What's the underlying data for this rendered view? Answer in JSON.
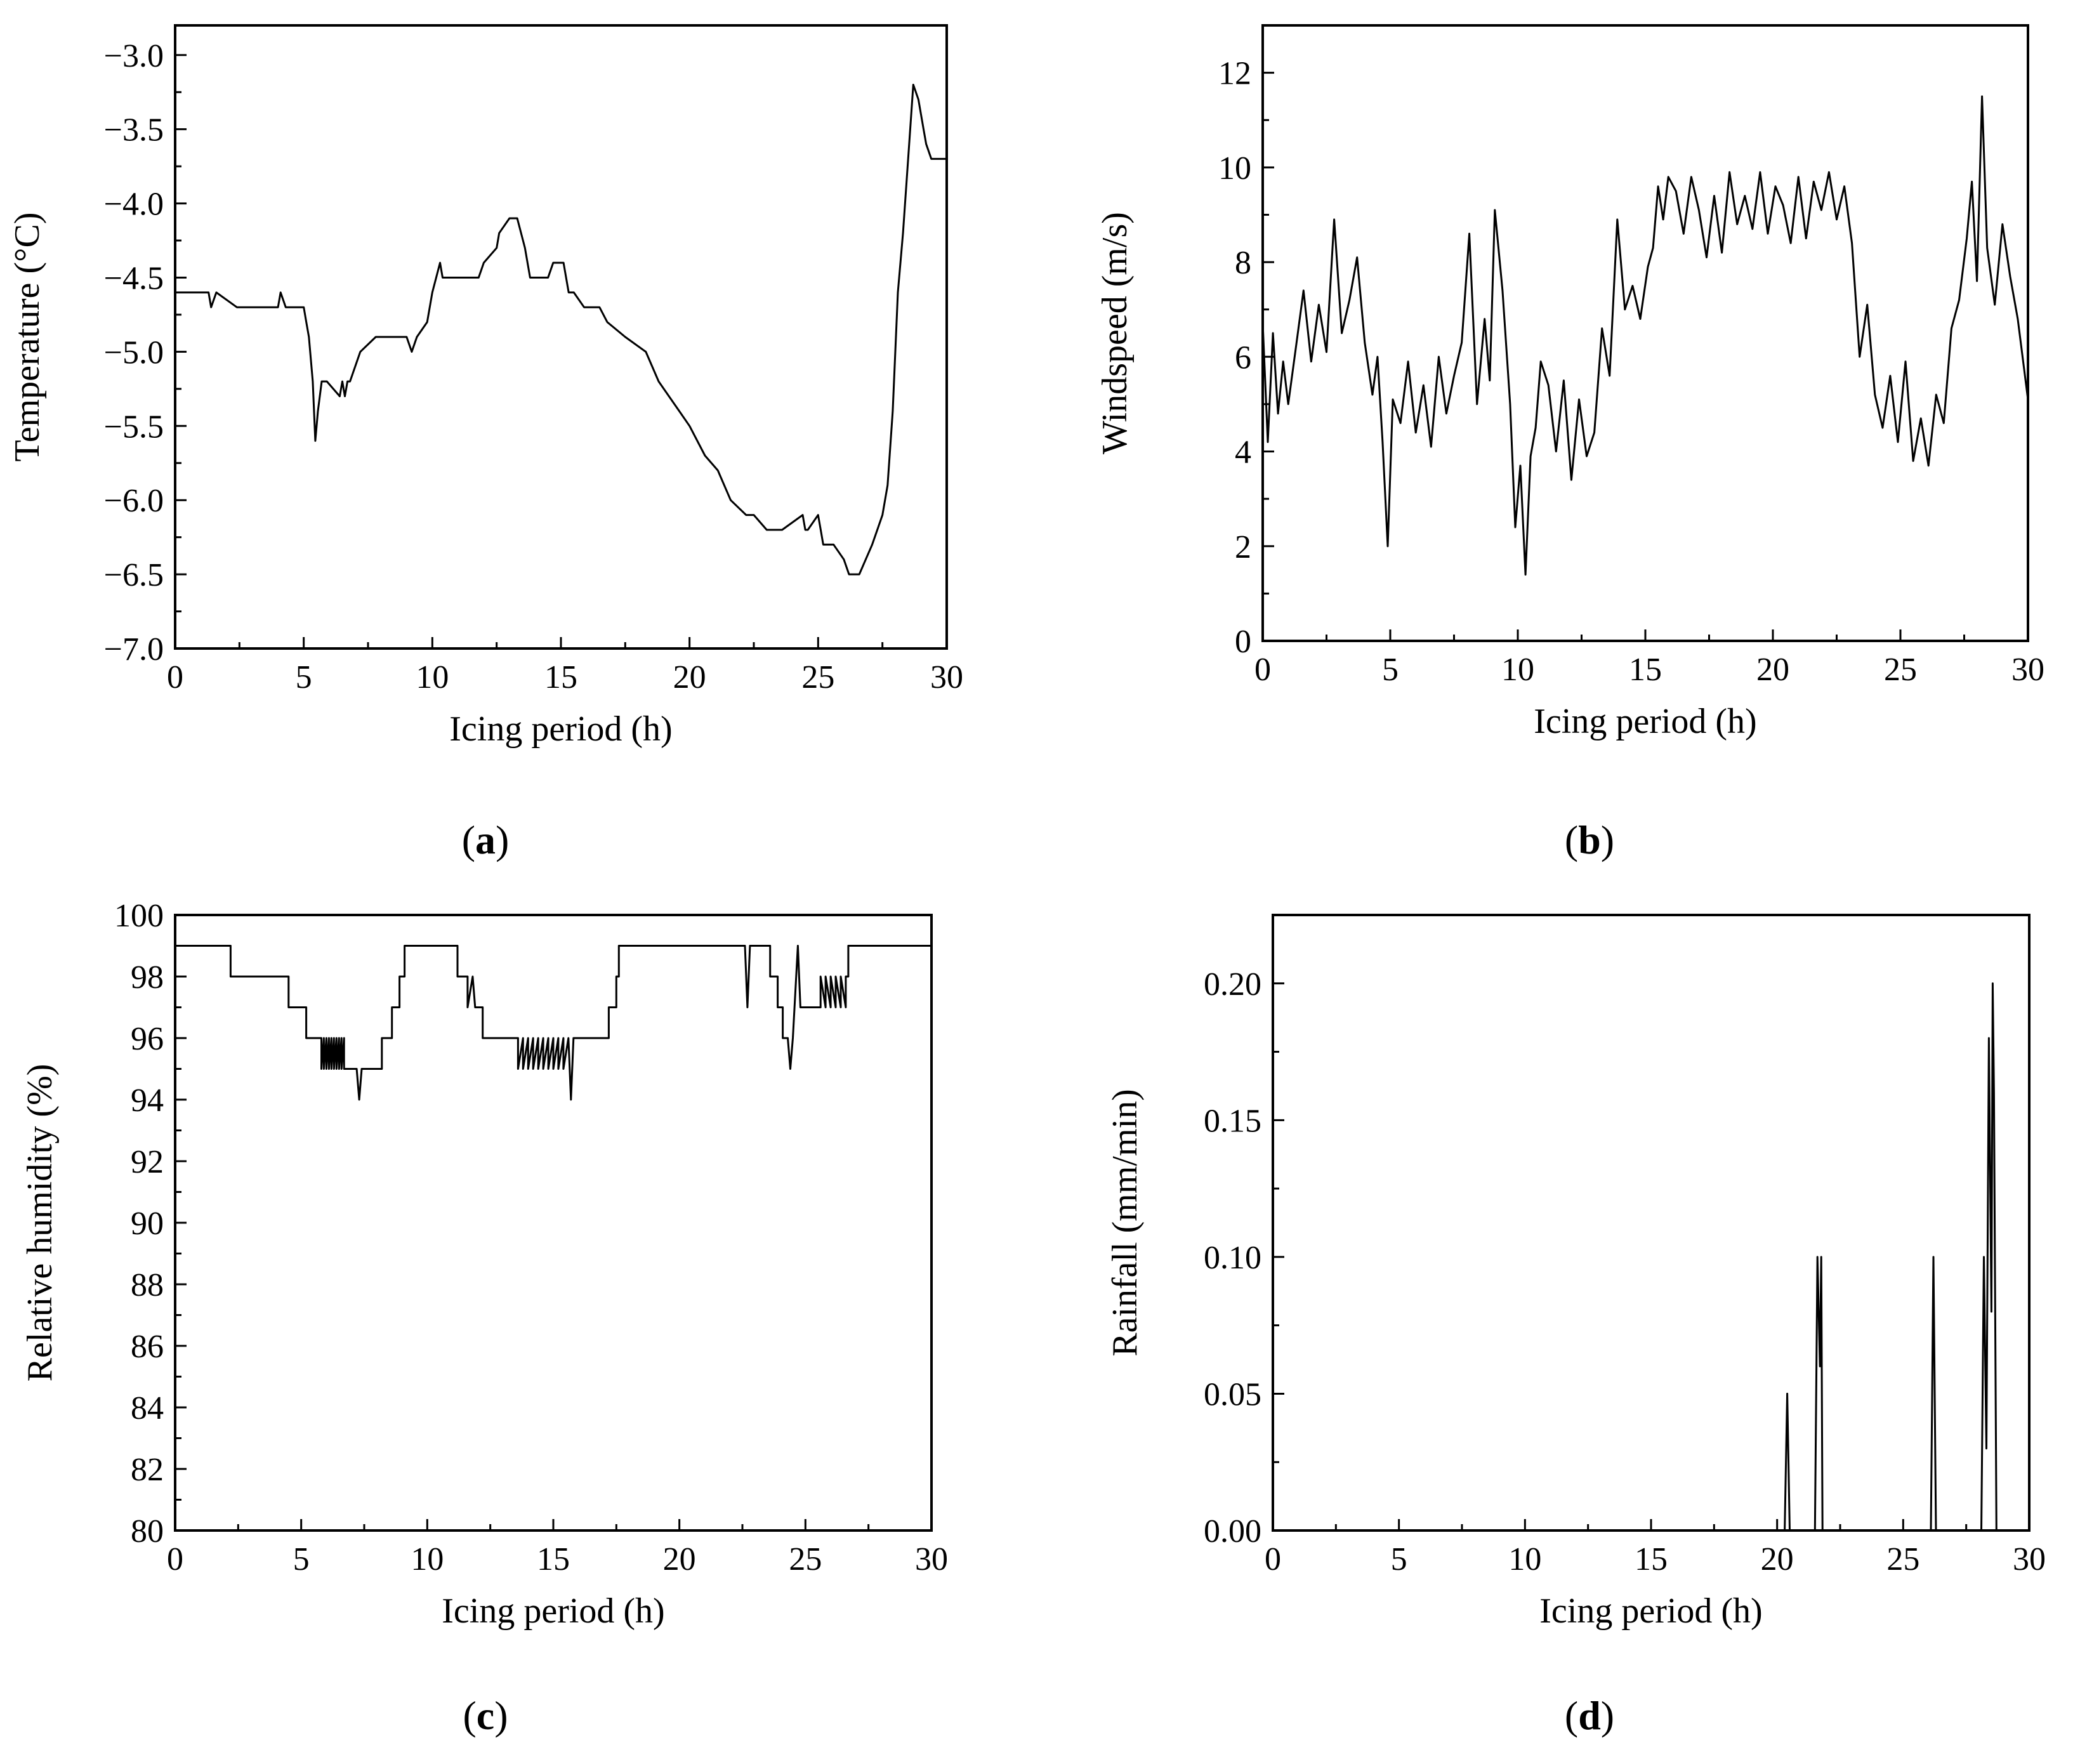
{
  "chart_data": [
    {
      "id": "a",
      "panel_label": "a",
      "type": "line",
      "title": "",
      "xlabel": "Icing period (h)",
      "ylabel": "Temperature (°C)",
      "xlim": [
        0,
        30
      ],
      "ylim": [
        -7.0,
        -2.8
      ],
      "xticks": [
        0,
        5,
        10,
        15,
        20,
        25,
        30
      ],
      "xtick_labels": [
        "0",
        "5",
        "10",
        "15",
        "20",
        "25",
        "30"
      ],
      "yticks": [
        -7.0,
        -6.5,
        -6.0,
        -5.5,
        -5.0,
        -4.5,
        -4.0,
        -3.5,
        -3.0
      ],
      "ytick_labels": [
        "−7.0",
        "−6.5",
        "−6.0",
        "−5.5",
        "−5.0",
        "−4.5",
        "−4.0",
        "−3.5",
        "−3.0"
      ],
      "grid": false,
      "series": [
        {
          "name": "Temperature",
          "x": [
            0,
            1.3,
            1.4,
            1.6,
            2.4,
            4.0,
            4.1,
            4.3,
            5.0,
            5.1,
            5.2,
            5.35,
            5.45,
            5.55,
            5.7,
            5.9,
            6.4,
            6.5,
            6.6,
            6.7,
            6.8,
            7.0,
            7.2,
            7.8,
            8.0,
            9.0,
            9.2,
            9.4,
            9.8,
            10.0,
            10.3,
            10.4,
            10.6,
            11.0,
            11.8,
            12.0,
            12.5,
            12.6,
            13.0,
            13.1,
            13.3,
            13.6,
            13.8,
            14.0,
            14.5,
            14.7,
            15.1,
            15.3,
            15.5,
            15.9,
            16.5,
            16.8,
            17.5,
            18.3,
            18.8,
            19.6,
            20.0,
            20.6,
            21.1,
            21.6,
            22.2,
            22.5,
            23.0,
            23.6,
            24.4,
            24.5,
            24.6,
            25.0,
            25.1,
            25.2,
            25.6,
            26.0,
            26.2,
            26.6,
            27.1,
            27.3,
            27.5,
            27.7,
            27.9,
            28.1,
            28.3,
            28.5,
            28.7,
            28.9,
            29.1,
            29.2,
            29.4,
            29.6,
            30.0
          ],
          "y": [
            -4.6,
            -4.6,
            -4.7,
            -4.6,
            -4.7,
            -4.7,
            -4.6,
            -4.7,
            -4.7,
            -4.8,
            -4.9,
            -5.2,
            -5.6,
            -5.4,
            -5.2,
            -5.2,
            -5.3,
            -5.2,
            -5.3,
            -5.2,
            -5.2,
            -5.1,
            -5.0,
            -4.9,
            -4.9,
            -4.9,
            -5.0,
            -4.9,
            -4.8,
            -4.6,
            -4.4,
            -4.5,
            -4.5,
            -4.5,
            -4.5,
            -4.4,
            -4.3,
            -4.2,
            -4.1,
            -4.1,
            -4.1,
            -4.3,
            -4.5,
            -4.5,
            -4.5,
            -4.4,
            -4.4,
            -4.6,
            -4.6,
            -4.7,
            -4.7,
            -4.8,
            -4.9,
            -5.0,
            -5.2,
            -5.4,
            -5.5,
            -5.7,
            -5.8,
            -6.0,
            -6.1,
            -6.1,
            -6.2,
            -6.2,
            -6.1,
            -6.2,
            -6.2,
            -6.1,
            -6.2,
            -6.3,
            -6.3,
            -6.4,
            -6.5,
            -6.5,
            -6.3,
            -6.2,
            -6.1,
            -5.9,
            -5.4,
            -4.6,
            -4.2,
            -3.7,
            -3.2,
            -3.3,
            -3.5,
            -3.6,
            -3.7,
            -3.7,
            -3.7
          ]
        }
      ]
    },
    {
      "id": "b",
      "panel_label": "b",
      "type": "line",
      "title": "",
      "xlabel": "Icing period (h)",
      "ylabel": "Windspeed (m/s)",
      "xlim": [
        0,
        30
      ],
      "ylim": [
        0,
        13
      ],
      "xticks": [
        0,
        5,
        10,
        15,
        20,
        25,
        30
      ],
      "xtick_labels": [
        "0",
        "5",
        "10",
        "15",
        "20",
        "25",
        "30"
      ],
      "yticks": [
        0,
        2,
        4,
        6,
        8,
        10,
        12
      ],
      "ytick_labels": [
        "0",
        "2",
        "4",
        "6",
        "8",
        "10",
        "12"
      ],
      "grid": false,
      "series": [
        {
          "name": "Windspeed",
          "x": [
            0,
            0.2,
            0.4,
            0.6,
            0.8,
            1.0,
            1.3,
            1.6,
            1.9,
            2.2,
            2.5,
            2.8,
            3.1,
            3.4,
            3.7,
            4.0,
            4.3,
            4.5,
            4.7,
            4.9,
            5.1,
            5.4,
            5.7,
            6.0,
            6.3,
            6.6,
            6.9,
            7.2,
            7.5,
            7.8,
            8.1,
            8.4,
            8.7,
            8.9,
            9.1,
            9.4,
            9.7,
            9.9,
            10.1,
            10.3,
            10.5,
            10.7,
            10.9,
            11.2,
            11.5,
            11.8,
            12.1,
            12.4,
            12.7,
            13.0,
            13.3,
            13.6,
            13.9,
            14.2,
            14.5,
            14.8,
            15.1,
            15.3,
            15.5,
            15.7,
            15.9,
            16.2,
            16.5,
            16.8,
            17.1,
            17.4,
            17.7,
            18.0,
            18.3,
            18.6,
            18.9,
            19.2,
            19.5,
            19.8,
            20.1,
            20.4,
            20.7,
            21.0,
            21.3,
            21.6,
            21.9,
            22.2,
            22.5,
            22.8,
            23.1,
            23.4,
            23.7,
            24.0,
            24.3,
            24.6,
            24.9,
            25.2,
            25.5,
            25.8,
            26.1,
            26.4,
            26.7,
            27.0,
            27.3,
            27.6,
            27.8,
            28.0,
            28.2,
            28.4,
            28.7,
            29.0,
            29.3,
            29.6,
            30.0
          ],
          "y": [
            6.7,
            4.2,
            6.5,
            4.8,
            5.9,
            5.0,
            6.2,
            7.4,
            5.9,
            7.1,
            6.1,
            8.9,
            6.5,
            7.2,
            8.1,
            6.3,
            5.2,
            6.0,
            4.2,
            2.0,
            5.1,
            4.6,
            5.9,
            4.4,
            5.4,
            4.1,
            6.0,
            4.8,
            5.6,
            6.3,
            8.6,
            5.0,
            6.8,
            5.5,
            9.1,
            7.4,
            5.0,
            2.4,
            3.7,
            1.4,
            3.9,
            4.5,
            5.9,
            5.4,
            4.0,
            5.5,
            3.4,
            5.1,
            3.9,
            4.4,
            6.6,
            5.6,
            8.9,
            7.0,
            7.5,
            6.8,
            7.9,
            8.3,
            9.6,
            8.9,
            9.8,
            9.5,
            8.6,
            9.8,
            9.1,
            8.1,
            9.4,
            8.2,
            9.9,
            8.8,
            9.4,
            8.7,
            9.9,
            8.6,
            9.6,
            9.2,
            8.4,
            9.8,
            8.5,
            9.7,
            9.1,
            9.9,
            8.9,
            9.6,
            8.4,
            6.0,
            7.1,
            5.2,
            4.5,
            5.6,
            4.2,
            5.9,
            3.8,
            4.7,
            3.7,
            5.2,
            4.6,
            6.6,
            7.2,
            8.5,
            9.7,
            7.6,
            11.5,
            8.3,
            7.1,
            8.8,
            7.7,
            6.8,
            5.1
          ]
        }
      ]
    },
    {
      "id": "c",
      "panel_label": "c",
      "type": "line",
      "title": "",
      "xlabel": "Icing period (h)",
      "ylabel": "Relative humidity (%)",
      "xlim": [
        0,
        30
      ],
      "ylim": [
        80,
        100
      ],
      "xticks": [
        0,
        5,
        10,
        15,
        20,
        25,
        30
      ],
      "xtick_labels": [
        "0",
        "5",
        "10",
        "15",
        "20",
        "25",
        "30"
      ],
      "yticks": [
        80,
        82,
        84,
        86,
        88,
        90,
        92,
        94,
        96,
        98,
        100
      ],
      "ytick_labels": [
        "80",
        "82",
        "84",
        "86",
        "88",
        "90",
        "92",
        "94",
        "96",
        "98",
        "100"
      ],
      "grid": false,
      "series": [
        {
          "name": "Relative humidity",
          "x": [
            0,
            2.2,
            2.2,
            4.5,
            4.5,
            5.2,
            5.2,
            5.8,
            5.8,
            5.9,
            5.9,
            6.0,
            6.0,
            6.1,
            6.1,
            6.2,
            6.2,
            6.3,
            6.3,
            6.4,
            6.4,
            6.5,
            6.5,
            6.6,
            6.6,
            6.7,
            6.7,
            7.2,
            7.3,
            7.4,
            7.5,
            8.2,
            8.2,
            8.6,
            8.6,
            8.9,
            8.9,
            9.1,
            9.1,
            11.2,
            11.2,
            11.6,
            11.6,
            11.8,
            11.9,
            12.0,
            12.0,
            12.2,
            12.2,
            12.8,
            12.8,
            13.6,
            13.6,
            13.8,
            13.8,
            14.0,
            14.0,
            14.2,
            14.2,
            14.4,
            14.4,
            14.6,
            14.6,
            14.8,
            14.8,
            15.0,
            15.0,
            15.2,
            15.2,
            15.4,
            15.4,
            15.6,
            15.7,
            15.8,
            15.8,
            17.2,
            17.2,
            17.5,
            17.5,
            17.6,
            17.6,
            22.6,
            22.7,
            22.8,
            22.8,
            23.6,
            23.6,
            23.9,
            23.9,
            24.1,
            24.1,
            24.3,
            24.4,
            24.5,
            24.5,
            24.7,
            24.8,
            24.8,
            25.2,
            25.2,
            25.6,
            25.6,
            25.8,
            25.8,
            26.0,
            26.0,
            26.2,
            26.2,
            26.4,
            26.4,
            26.6,
            26.6,
            26.7,
            26.7,
            30.0
          ],
          "y": [
            99,
            99,
            98,
            98,
            97,
            97,
            96,
            96,
            95,
            96,
            95,
            96,
            95,
            96,
            95,
            96,
            95,
            96,
            95,
            96,
            95,
            96,
            95,
            96,
            95,
            96,
            95,
            95,
            94,
            95,
            95,
            95,
            96,
            96,
            97,
            97,
            98,
            98,
            99,
            99,
            98,
            98,
            97,
            98,
            97,
            97,
            97,
            97,
            96,
            96,
            96,
            96,
            95,
            96,
            95,
            96,
            95,
            96,
            95,
            96,
            95,
            96,
            95,
            96,
            95,
            96,
            95,
            96,
            95,
            96,
            95,
            96,
            94,
            96,
            96,
            96,
            97,
            97,
            98,
            98,
            99,
            99,
            97,
            99,
            99,
            99,
            98,
            98,
            97,
            97,
            96,
            96,
            95,
            96,
            96,
            99,
            97,
            97,
            97,
            97,
            97,
            98,
            97,
            98,
            97,
            98,
            97,
            98,
            97,
            98,
            97,
            98,
            98,
            99,
            99
          ]
        }
      ]
    },
    {
      "id": "d",
      "panel_label": "d",
      "type": "line",
      "title": "",
      "xlabel": "Icing period (h)",
      "ylabel": "Rainfall (mm/min)",
      "xlim": [
        0,
        30
      ],
      "ylim": [
        0,
        0.225
      ],
      "xticks": [
        0,
        5,
        10,
        15,
        20,
        25,
        30
      ],
      "xtick_labels": [
        "0",
        "5",
        "10",
        "15",
        "20",
        "25",
        "30"
      ],
      "yticks": [
        0.0,
        0.05,
        0.1,
        0.15,
        0.2
      ],
      "ytick_labels": [
        "0.00",
        "0.05",
        "0.10",
        "0.15",
        "0.20"
      ],
      "grid": false,
      "series": [
        {
          "name": "Rainfall",
          "x": [
            0,
            20.3,
            20.4,
            20.5,
            21.5,
            21.6,
            21.7,
            21.75,
            21.8,
            21.9,
            26.1,
            26.2,
            26.3,
            28.1,
            28.2,
            28.3,
            28.4,
            28.5,
            28.55,
            28.6,
            28.7,
            30.0
          ],
          "y": [
            0,
            0,
            0.05,
            0,
            0,
            0.1,
            0.06,
            0.1,
            0,
            0,
            0,
            0.1,
            0,
            0,
            0.1,
            0.03,
            0.18,
            0.08,
            0.2,
            0.16,
            0,
            0
          ]
        }
      ]
    }
  ]
}
